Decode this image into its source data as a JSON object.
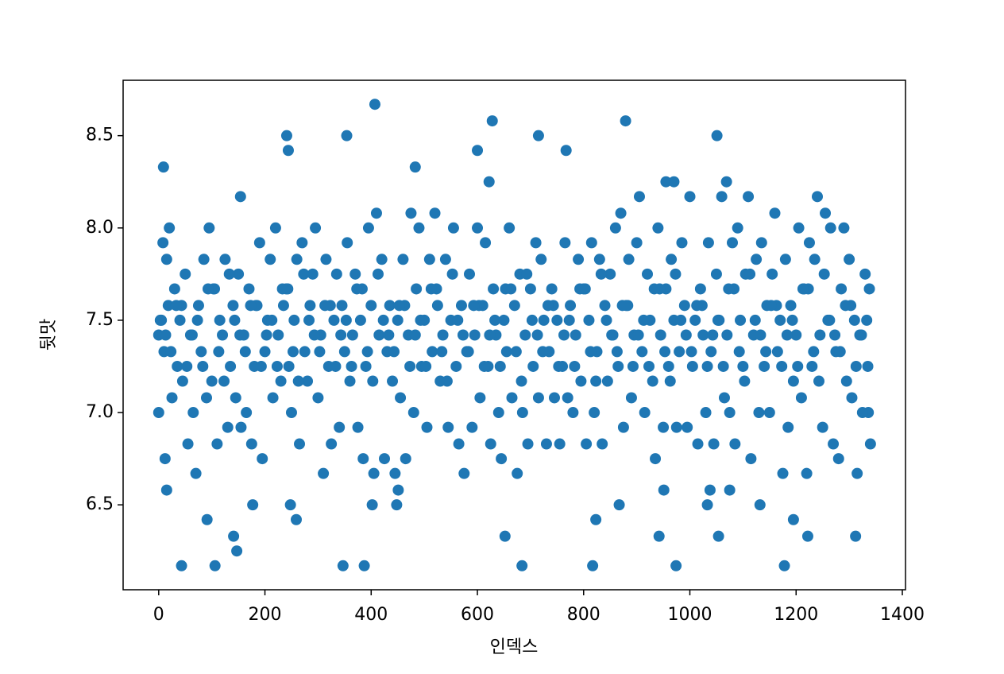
{
  "chart_data": {
    "type": "scatter",
    "x_label": "인덱스",
    "y_label": "뒷맛",
    "color": "#1f77b4",
    "xlim": [
      -67,
      1406
    ],
    "ylim": [
      6.04,
      8.8
    ],
    "xticks": [
      0,
      200,
      400,
      600,
      800,
      1000,
      1200,
      1400
    ],
    "yticks": [
      6.5,
      {
        "value": 7.0,
        "label": "7.0"
      },
      7.5,
      {
        "value": 8.0,
        "label": "8.0"
      },
      8.5
    ],
    "x": [
      9,
      43,
      106,
      347,
      387,
      684,
      817,
      974,
      1178,
      241,
      244,
      354,
      407,
      483,
      628,
      600,
      622,
      715,
      767,
      879,
      1051,
      955,
      970,
      1069,
      154,
      15,
      91,
      141,
      147,
      177,
      248,
      259,
      652,
      823,
      867,
      942,
      951,
      1033,
      1038,
      1054,
      1075,
      1132,
      1195,
      1222,
      1312,
      402,
      448,
      451,
      0,
      8,
      12,
      18,
      1338,
      1336,
      0,
      5,
      10,
      15,
      20,
      25,
      30,
      35,
      40,
      45,
      50,
      55,
      60,
      65,
      70,
      75,
      80,
      85,
      90,
      95,
      100,
      105,
      110,
      115,
      120,
      125,
      130,
      135,
      140,
      145,
      150,
      155,
      160,
      165,
      170,
      175,
      180,
      185,
      190,
      195,
      200,
      205,
      210,
      215,
      220,
      225,
      230,
      235,
      240,
      245,
      250,
      255,
      260,
      265,
      270,
      275,
      280,
      285,
      290,
      295,
      300,
      305,
      310,
      315,
      320,
      325,
      330,
      335,
      340,
      345,
      350,
      355,
      360,
      365,
      370,
      375,
      380,
      385,
      390,
      395,
      400,
      405,
      410,
      415,
      420,
      425,
      430,
      435,
      440,
      445,
      450,
      455,
      460,
      465,
      470,
      475,
      480,
      485,
      490,
      495,
      500,
      505,
      510,
      515,
      520,
      525,
      530,
      535,
      540,
      545,
      550,
      555,
      560,
      565,
      570,
      575,
      580,
      585,
      590,
      595,
      600,
      605,
      610,
      615,
      620,
      625,
      630,
      635,
      640,
      645,
      650,
      655,
      660,
      665,
      670,
      675,
      680,
      685,
      690,
      695,
      700,
      705,
      710,
      715,
      720,
      725,
      730,
      735,
      740,
      745,
      750,
      755,
      760,
      765,
      770,
      775,
      780,
      785,
      790,
      795,
      800,
      805,
      810,
      815,
      820,
      825,
      830,
      835,
      840,
      845,
      850,
      855,
      860,
      865,
      870,
      875,
      880,
      885,
      890,
      895,
      900,
      905,
      910,
      915,
      920,
      925,
      930,
      935,
      940,
      945,
      950,
      955,
      960,
      965,
      970,
      975,
      980,
      985,
      990,
      995,
      1000,
      1005,
      1010,
      1015,
      1020,
      1025,
      1030,
      1035,
      1040,
      1045,
      1050,
      1055,
      1060,
      1065,
      1070,
      1075,
      1080,
      1085,
      1090,
      1095,
      1100,
      1105,
      1110,
      1115,
      1120,
      1125,
      1130,
      1135,
      1140,
      1145,
      1150,
      1155,
      1160,
      1165,
      1170,
      1175,
      1180,
      1185,
      1190,
      1195,
      1200,
      1205,
      1210,
      1215,
      1220,
      1225,
      1230,
      1235,
      1240,
      1245,
      1250,
      1255,
      1260,
      1265,
      1270,
      1275,
      1280,
      1285,
      1290,
      1295,
      1300,
      1305,
      1310,
      1315,
      1320,
      1325,
      1330,
      1335,
      1340,
      3,
      23,
      43,
      63,
      83,
      103,
      123,
      143,
      163,
      183,
      203,
      223,
      243,
      263,
      283,
      303,
      323,
      343,
      363,
      383,
      403,
      423,
      443,
      463,
      483,
      503,
      523,
      543,
      563,
      583,
      603,
      623,
      643,
      663,
      683,
      703,
      723,
      743,
      763,
      783,
      803,
      823,
      843,
      863,
      883,
      903,
      923,
      943,
      963,
      983,
      1003,
      1023,
      1043,
      1063,
      1083,
      1103,
      1123,
      1143,
      1163,
      1183,
      1203,
      1223,
      1243,
      1263,
      1283,
      1303,
      1323,
      13,
      33,
      53,
      73,
      93,
      113,
      133,
      153,
      173,
      193,
      213,
      233,
      253,
      273,
      293,
      313,
      333,
      353,
      373,
      393,
      413,
      433,
      453,
      473,
      493,
      513,
      533,
      553,
      573,
      593,
      613,
      633,
      653,
      673,
      693,
      713,
      733,
      753,
      773,
      793,
      813,
      833,
      853,
      873,
      893,
      913,
      933,
      953,
      973,
      993,
      1013,
      1033,
      1053,
      1073,
      1093,
      1113,
      1133,
      1153,
      1173,
      1193,
      1213,
      1233,
      1253,
      1273,
      1293,
      1313,
      1333
    ],
    "values": [
      8.33,
      6.17,
      6.17,
      6.17,
      6.17,
      6.17,
      6.17,
      6.17,
      6.17,
      8.5,
      8.42,
      8.5,
      8.67,
      8.33,
      8.58,
      8.42,
      8.25,
      8.5,
      8.42,
      8.58,
      8.5,
      8.25,
      8.25,
      8.25,
      8.17,
      6.58,
      6.42,
      6.33,
      6.25,
      6.5,
      6.5,
      6.42,
      6.33,
      6.42,
      6.5,
      6.33,
      6.58,
      6.5,
      6.58,
      6.33,
      6.58,
      6.5,
      6.42,
      6.33,
      6.33,
      6.5,
      6.5,
      6.58,
      7.0,
      7.92,
      6.75,
      7.58,
      7.67,
      7.0,
      7.42,
      7.5,
      7.33,
      7.83,
      8.0,
      7.08,
      7.67,
      7.25,
      7.5,
      7.17,
      7.75,
      6.83,
      7.42,
      7.0,
      6.67,
      7.58,
      7.33,
      7.83,
      7.08,
      8.0,
      7.17,
      7.67,
      6.83,
      7.5,
      7.42,
      7.83,
      6.92,
      7.25,
      7.58,
      7.08,
      7.75,
      6.92,
      7.42,
      7.0,
      7.67,
      6.83,
      7.25,
      7.58,
      7.92,
      6.75,
      7.33,
      7.5,
      7.83,
      7.08,
      8.0,
      7.42,
      7.17,
      7.58,
      7.67,
      7.25,
      7.0,
      7.5,
      7.83,
      6.83,
      7.92,
      7.33,
      7.17,
      7.58,
      7.75,
      8.0,
      7.08,
      7.42,
      6.67,
      7.83,
      7.25,
      6.83,
      7.5,
      7.75,
      6.92,
      7.58,
      7.33,
      7.92,
      7.17,
      7.42,
      7.75,
      6.92,
      7.5,
      6.75,
      7.25,
      8.0,
      7.58,
      6.67,
      8.08,
      7.42,
      7.83,
      6.75,
      7.33,
      7.58,
      7.17,
      6.67,
      7.5,
      7.08,
      7.83,
      6.75,
      7.42,
      8.08,
      7.0,
      7.67,
      8.0,
      7.25,
      7.5,
      6.92,
      7.83,
      7.33,
      8.08,
      7.58,
      7.17,
      7.42,
      7.83,
      6.92,
      7.5,
      8.0,
      7.25,
      6.83,
      7.58,
      6.67,
      7.33,
      7.75,
      6.92,
      7.42,
      8.0,
      7.08,
      7.58,
      7.92,
      7.25,
      6.83,
      7.67,
      7.42,
      7.0,
      6.75,
      7.5,
      7.33,
      8.0,
      7.08,
      7.58,
      6.67,
      7.75,
      7.0,
      7.42,
      6.83,
      7.67,
      7.25,
      7.92,
      7.08,
      7.83,
      7.5,
      6.83,
      7.33,
      7.67,
      7.08,
      7.5,
      6.83,
      7.25,
      7.92,
      7.08,
      7.58,
      7.0,
      7.42,
      7.83,
      7.17,
      7.67,
      6.83,
      7.5,
      7.92,
      7.0,
      7.33,
      7.83,
      6.83,
      7.58,
      7.17,
      7.75,
      7.42,
      8.0,
      7.25,
      8.08,
      6.92,
      7.58,
      7.83,
      7.08,
      7.42,
      7.92,
      8.17,
      7.33,
      7.0,
      7.75,
      7.5,
      7.17,
      6.75,
      8.0,
      7.42,
      6.92,
      7.67,
      7.25,
      7.83,
      7.5,
      6.92,
      7.33,
      7.92,
      7.58,
      6.92,
      8.17,
      7.25,
      7.5,
      6.83,
      7.67,
      7.42,
      7.0,
      7.92,
      7.33,
      6.83,
      7.75,
      7.5,
      8.17,
      7.08,
      7.42,
      7.0,
      7.92,
      6.83,
      8.0,
      7.5,
      7.25,
      7.75,
      8.17,
      6.75,
      7.42,
      7.83,
      7.0,
      7.92,
      7.25,
      7.58,
      7.0,
      7.75,
      8.08,
      7.33,
      7.5,
      6.67,
      7.83,
      6.92,
      7.58,
      7.17,
      7.42,
      8.0,
      7.08,
      7.67,
      6.67,
      7.92,
      7.25,
      7.83,
      8.17,
      7.42,
      6.92,
      8.08,
      7.5,
      8.0,
      6.83,
      7.33,
      6.75,
      7.67,
      8.0,
      7.17,
      7.83,
      7.08,
      7.5,
      6.67,
      7.42,
      7.0,
      7.75,
      7.25,
      6.83,
      7.5,
      7.33,
      7.58,
      7.42,
      7.25,
      7.67,
      7.17,
      7.5,
      7.33,
      7.58,
      7.42,
      7.25,
      7.67,
      7.17,
      7.5,
      7.33,
      7.58,
      7.42,
      7.25,
      7.67,
      7.17,
      7.5,
      7.33,
      7.58,
      7.42,
      7.25,
      7.67,
      7.17,
      7.5,
      7.33,
      7.58,
      7.42,
      7.25,
      7.67,
      7.17,
      7.5,
      7.33,
      7.58,
      7.42,
      7.25,
      7.67,
      7.17,
      7.5,
      7.33,
      7.58,
      7.42,
      7.25,
      7.67,
      7.17,
      7.5,
      7.33,
      7.58,
      7.42,
      7.25,
      7.67,
      7.17,
      7.5,
      7.33,
      7.58,
      7.42,
      7.25,
      7.67,
      7.17,
      7.5,
      7.33,
      7.58,
      7.42,
      7.42,
      7.58,
      7.25,
      7.5,
      7.67,
      7.33,
      7.75,
      7.42,
      7.58,
      7.25,
      7.5,
      7.67,
      7.33,
      7.75,
      7.42,
      7.58,
      7.25,
      7.5,
      7.67,
      7.33,
      7.75,
      7.42,
      7.58,
      7.25,
      7.5,
      7.67,
      7.33,
      7.75,
      7.42,
      7.58,
      7.25,
      7.5,
      7.67,
      7.33,
      7.75,
      7.42,
      7.58,
      7.25,
      7.5,
      7.67,
      7.33,
      7.75,
      7.42,
      7.58,
      7.25,
      7.5,
      7.67,
      7.33,
      7.75,
      7.42,
      7.58,
      7.25,
      7.5,
      7.67,
      7.33,
      7.75,
      7.42,
      7.58,
      7.25,
      7.5,
      7.67,
      7.33,
      7.75,
      7.42,
      7.58,
      7.25,
      7.5
    ]
  }
}
